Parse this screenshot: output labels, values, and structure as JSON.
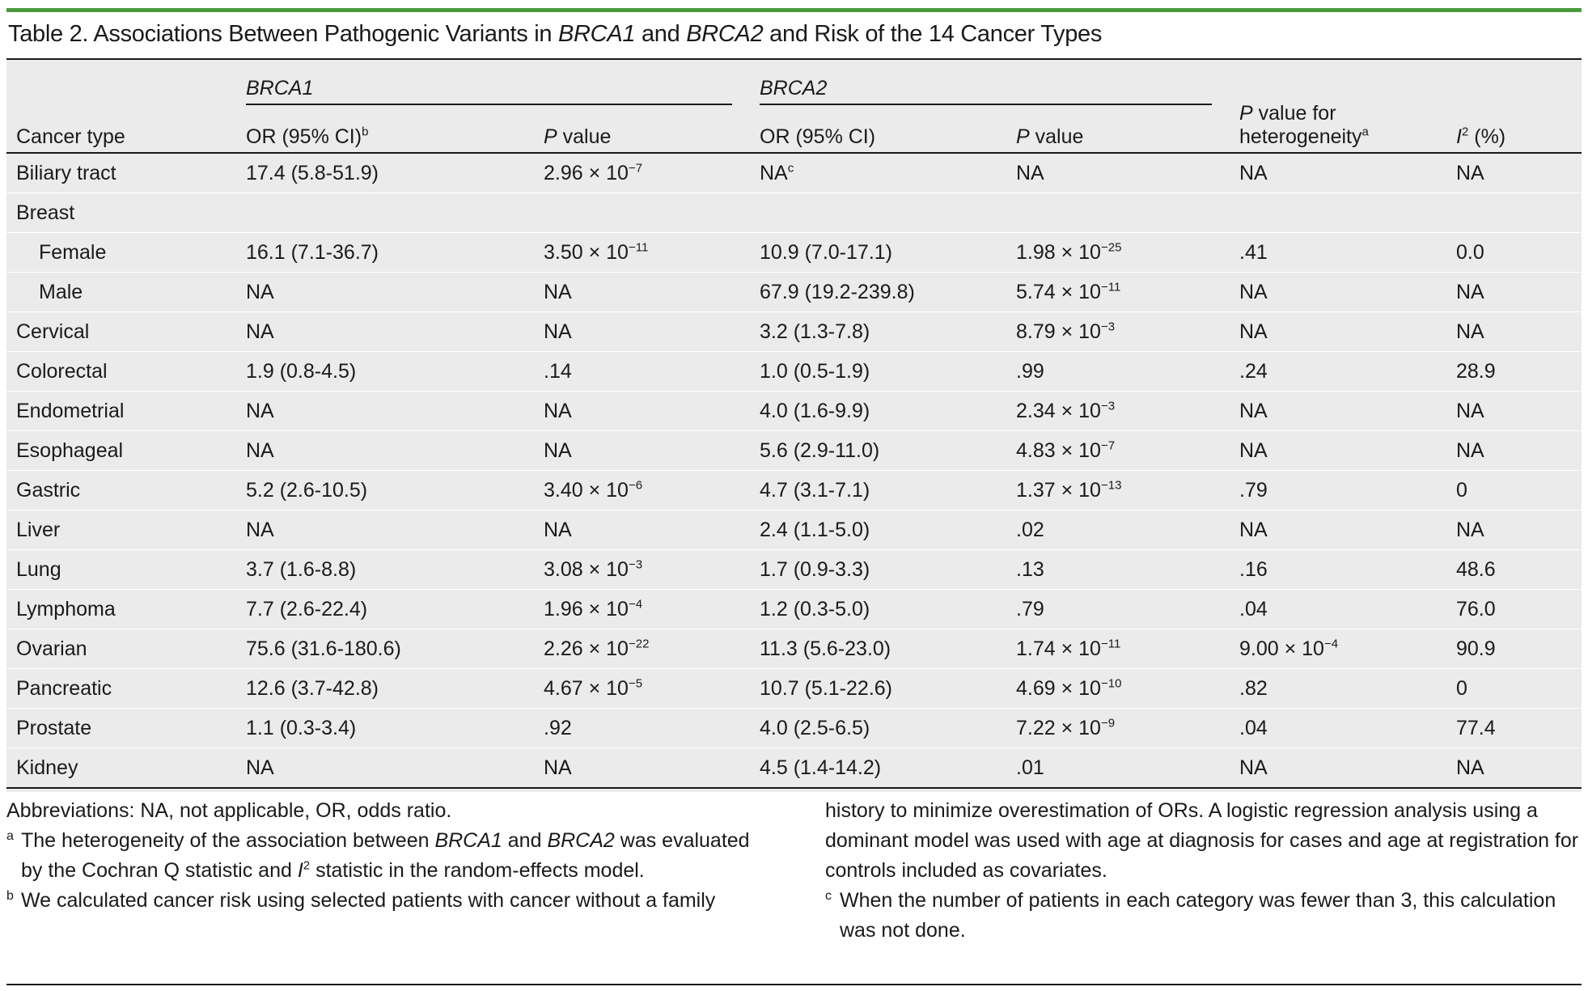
{
  "title": {
    "prefix": "Table 2. Associations Between Pathogenic Variants in ",
    "gene1": "BRCA1",
    "and": " and ",
    "gene2": "BRCA2",
    "suffix": " and Risk of the 14 Cancer Types"
  },
  "headers": {
    "cancer_type": "Cancer type",
    "brca1": "BRCA1",
    "brca2": "BRCA2",
    "or_ci": "OR (95% CI)",
    "or_ci_b_mark": "b",
    "p_italic": "P",
    "p_value_rest": " value",
    "p_het_rest": " value for",
    "het_line2": "heterogeneity",
    "het_mark": "a",
    "i2_i": "I",
    "i2_sup": "2",
    "i2_rest": " (%)"
  },
  "rows": [
    {
      "cancer": "Biliary tract",
      "b1_or": "17.4 (5.8-51.9)",
      "b1_p": "2.96 × 10",
      "b1_exp": "−7",
      "b2_or": "NA",
      "b2_or_mark": "c",
      "b2_p": "NA",
      "b2_exp": "",
      "het": "NA",
      "het_exp": "",
      "i2": "NA"
    },
    {
      "cancer": "Breast",
      "b1_or": "",
      "b1_p": "",
      "b1_exp": "",
      "b2_or": "",
      "b2_or_mark": "",
      "b2_p": "",
      "b2_exp": "",
      "het": "",
      "het_exp": "",
      "i2": ""
    },
    {
      "cancer": "Female",
      "b1_or": "16.1 (7.1-36.7)",
      "b1_p": "3.50 × 10",
      "b1_exp": "−11",
      "b2_or": "10.9 (7.0-17.1)",
      "b2_or_mark": "",
      "b2_p": "1.98 × 10",
      "b2_exp": "−25",
      "het": ".41",
      "het_exp": "",
      "i2": "0.0"
    },
    {
      "cancer": "Male",
      "b1_or": "NA",
      "b1_p": "NA",
      "b1_exp": "",
      "b2_or": "67.9 (19.2-239.8)",
      "b2_or_mark": "",
      "b2_p": "5.74 × 10",
      "b2_exp": "−11",
      "het": "NA",
      "het_exp": "",
      "i2": "NA"
    },
    {
      "cancer": "Cervical",
      "b1_or": "NA",
      "b1_p": "NA",
      "b1_exp": "",
      "b2_or": "3.2 (1.3-7.8)",
      "b2_or_mark": "",
      "b2_p": "8.79 × 10",
      "b2_exp": "−3",
      "het": "NA",
      "het_exp": "",
      "i2": "NA"
    },
    {
      "cancer": "Colorectal",
      "b1_or": "1.9 (0.8-4.5)",
      "b1_p": ".14",
      "b1_exp": "",
      "b2_or": "1.0 (0.5-1.9)",
      "b2_or_mark": "",
      "b2_p": ".99",
      "b2_exp": "",
      "het": ".24",
      "het_exp": "",
      "i2": "28.9"
    },
    {
      "cancer": "Endometrial",
      "b1_or": "NA",
      "b1_p": "NA",
      "b1_exp": "",
      "b2_or": "4.0 (1.6-9.9)",
      "b2_or_mark": "",
      "b2_p": "2.34 × 10",
      "b2_exp": "−3",
      "het": "NA",
      "het_exp": "",
      "i2": "NA"
    },
    {
      "cancer": "Esophageal",
      "b1_or": "NA",
      "b1_p": "NA",
      "b1_exp": "",
      "b2_or": "5.6 (2.9-11.0)",
      "b2_or_mark": "",
      "b2_p": "4.83 × 10",
      "b2_exp": "−7",
      "het": "NA",
      "het_exp": "",
      "i2": "NA"
    },
    {
      "cancer": "Gastric",
      "b1_or": "5.2 (2.6-10.5)",
      "b1_p": "3.40 × 10",
      "b1_exp": "−6",
      "b2_or": "4.7 (3.1-7.1)",
      "b2_or_mark": "",
      "b2_p": "1.37 × 10",
      "b2_exp": "−13",
      "het": ".79",
      "het_exp": "",
      "i2": "0"
    },
    {
      "cancer": "Liver",
      "b1_or": "NA",
      "b1_p": "NA",
      "b1_exp": "",
      "b2_or": "2.4 (1.1-5.0)",
      "b2_or_mark": "",
      "b2_p": ".02",
      "b2_exp": "",
      "het": "NA",
      "het_exp": "",
      "i2": "NA"
    },
    {
      "cancer": "Lung",
      "b1_or": "3.7 (1.6-8.8)",
      "b1_p": "3.08 × 10",
      "b1_exp": "−3",
      "b2_or": "1.7 (0.9-3.3)",
      "b2_or_mark": "",
      "b2_p": ".13",
      "b2_exp": "",
      "het": ".16",
      "het_exp": "",
      "i2": "48.6"
    },
    {
      "cancer": "Lymphoma",
      "b1_or": "7.7 (2.6-22.4)",
      "b1_p": "1.96 × 10",
      "b1_exp": "−4",
      "b2_or": "1.2 (0.3-5.0)",
      "b2_or_mark": "",
      "b2_p": ".79",
      "b2_exp": "",
      "het": ".04",
      "het_exp": "",
      "i2": "76.0"
    },
    {
      "cancer": "Ovarian",
      "b1_or": "75.6 (31.6-180.6)",
      "b1_p": "2.26 × 10",
      "b1_exp": "−22",
      "b2_or": "11.3 (5.6-23.0)",
      "b2_or_mark": "",
      "b2_p": "1.74 × 10",
      "b2_exp": "−11",
      "het": "9.00 × 10",
      "het_exp": "−4",
      "i2": "90.9"
    },
    {
      "cancer": "Pancreatic",
      "b1_or": "12.6 (3.7-42.8)",
      "b1_p": "4.67 × 10",
      "b1_exp": "−5",
      "b2_or": "10.7 (5.1-22.6)",
      "b2_or_mark": "",
      "b2_p": "4.69 × 10",
      "b2_exp": "−10",
      "het": ".82",
      "het_exp": "",
      "i2": "0"
    },
    {
      "cancer": "Prostate",
      "b1_or": "1.1 (0.3-3.4)",
      "b1_p": ".92",
      "b1_exp": "",
      "b2_or": "4.0 (2.5-6.5)",
      "b2_or_mark": "",
      "b2_p": "7.22 × 10",
      "b2_exp": "−9",
      "het": ".04",
      "het_exp": "",
      "i2": "77.4"
    },
    {
      "cancer": "Kidney",
      "b1_or": "NA",
      "b1_p": "NA",
      "b1_exp": "",
      "b2_or": "4.5 (1.4-14.2)",
      "b2_or_mark": "",
      "b2_p": ".01",
      "b2_exp": "",
      "het": "NA",
      "het_exp": "",
      "i2": "NA"
    }
  ],
  "footnotes": {
    "abbreviations": "Abbreviations: NA, not applicable, OR, odds ratio.",
    "a_mark": "a",
    "a_text_1": "The heterogeneity of the association between ",
    "a_brca1": "BRCA1",
    "a_and": " and ",
    "a_brca2": "BRCA2",
    "a_text_2": " was evaluated by the Cochran Q statistic and ",
    "a_i": "I",
    "a_sup": "2",
    "a_text_3": " statistic in the random-effects model.",
    "b_mark": "b",
    "b_text": "We calculated cancer risk using selected patients with cancer without a family",
    "b_text_cont": "history to minimize overestimation of ORs. A logistic regression analysis using a dominant model was used with age at diagnosis for cases and age at registration for controls included as covariates.",
    "c_mark": "c",
    "c_text": "When the number of patients in each category was fewer than 3, this calculation was not done."
  }
}
